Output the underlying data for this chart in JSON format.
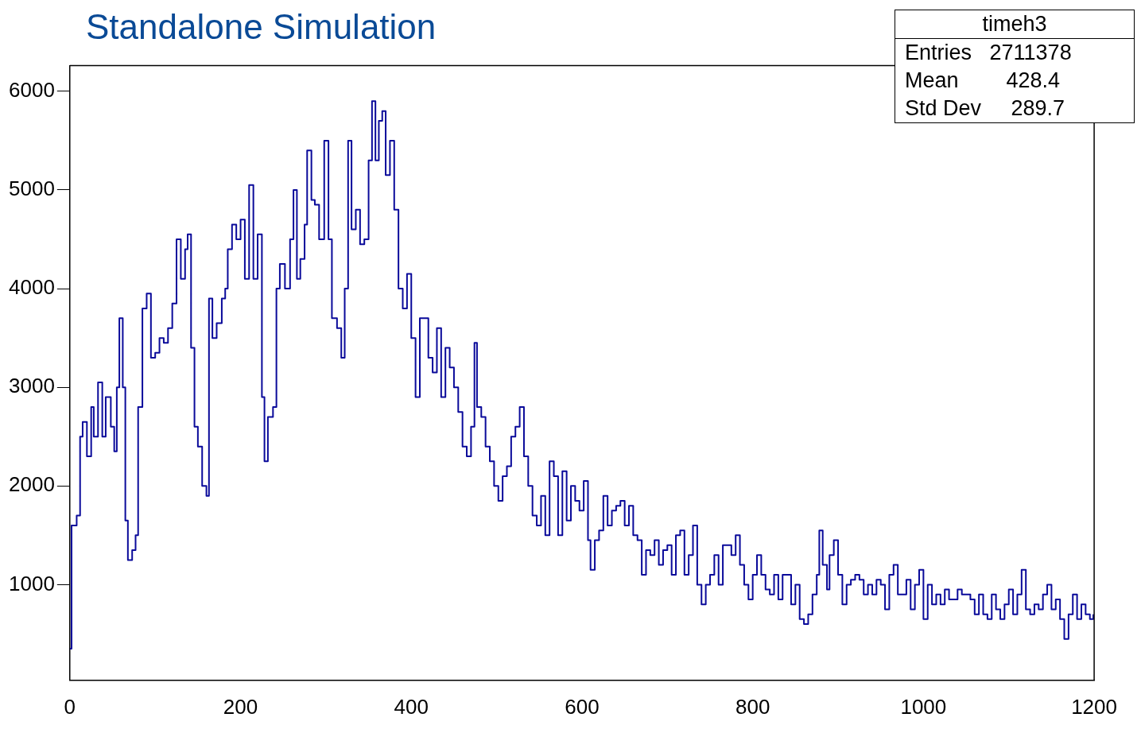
{
  "chart_data": {
    "type": "step",
    "title": "Standalone Simulation",
    "annotations": [
      "timeh3",
      "Entries   2711378",
      "Mean        428.4",
      "Std Dev     289.7"
    ],
    "xlim": [
      0,
      1200
    ],
    "xticks": [
      0,
      200,
      400,
      600,
      800,
      1000,
      1200
    ],
    "ylim": [
      30,
      6260
    ],
    "yticks": [
      1000,
      2000,
      3000,
      4000,
      5000,
      6000
    ],
    "grid": false,
    "legend": false,
    "x": [
      0,
      2,
      8,
      12,
      15,
      20,
      25,
      28,
      33,
      38,
      42,
      48,
      52,
      55,
      58,
      62,
      65,
      68,
      73,
      77,
      80,
      85,
      90,
      95,
      100,
      105,
      110,
      115,
      120,
      125,
      130,
      135,
      138,
      142,
      146,
      150,
      155,
      160,
      163,
      167,
      172,
      178,
      182,
      185,
      190,
      195,
      200,
      205,
      210,
      215,
      220,
      225,
      228,
      232,
      238,
      242,
      246,
      252,
      258,
      262,
      266,
      270,
      275,
      278,
      283,
      287,
      292,
      298,
      303,
      307,
      313,
      318,
      322,
      326,
      330,
      335,
      340,
      345,
      350,
      354,
      358,
      362,
      366,
      370,
      375,
      380,
      385,
      390,
      395,
      400,
      405,
      410,
      415,
      420,
      425,
      430,
      435,
      440,
      445,
      450,
      455,
      460,
      465,
      470,
      474,
      477,
      482,
      487,
      492,
      497,
      502,
      507,
      512,
      517,
      522,
      527,
      532,
      537,
      542,
      547,
      552,
      557,
      562,
      567,
      572,
      577,
      582,
      587,
      592,
      597,
      602,
      607,
      610,
      615,
      620,
      625,
      630,
      635,
      640,
      645,
      650,
      655,
      660,
      665,
      670,
      675,
      680,
      685,
      690,
      695,
      700,
      705,
      710,
      715,
      720,
      725,
      730,
      735,
      740,
      745,
      750,
      755,
      760,
      765,
      770,
      775,
      780,
      785,
      790,
      795,
      800,
      805,
      810,
      815,
      820,
      825,
      830,
      835,
      840,
      845,
      850,
      855,
      860,
      865,
      870,
      875,
      878,
      882,
      887,
      890,
      895,
      900,
      905,
      910,
      915,
      920,
      925,
      930,
      935,
      940,
      945,
      950,
      955,
      960,
      965,
      970,
      975,
      980,
      985,
      990,
      995,
      1000,
      1005,
      1010,
      1015,
      1020,
      1025,
      1030,
      1035,
      1040,
      1045,
      1050,
      1055,
      1060,
      1065,
      1070,
      1075,
      1080,
      1085,
      1090,
      1095,
      1100,
      1105,
      1110,
      1115,
      1120,
      1125,
      1130,
      1135,
      1140,
      1145,
      1150,
      1155,
      1160,
      1165,
      1170,
      1175,
      1180,
      1185,
      1190,
      1195,
      1199
    ],
    "series": [
      {
        "color": "#0a0a9a",
        "values": [
          350,
          1600,
          1700,
          2500,
          2650,
          2300,
          2800,
          2500,
          3050,
          2500,
          2900,
          2600,
          2350,
          3000,
          3700,
          3000,
          1650,
          1250,
          1350,
          1500,
          2800,
          3800,
          3950,
          3300,
          3350,
          3500,
          3450,
          3600,
          3850,
          4500,
          4100,
          4400,
          4550,
          3400,
          2600,
          2400,
          2000,
          1900,
          3900,
          3500,
          3650,
          3900,
          4000,
          4400,
          4650,
          4500,
          4700,
          4100,
          5050,
          4100,
          4550,
          2900,
          2250,
          2700,
          2800,
          4000,
          4250,
          4000,
          4500,
          5000,
          4100,
          4300,
          4650,
          5400,
          4900,
          4850,
          4500,
          5500,
          4500,
          3700,
          3600,
          3300,
          4000,
          5500,
          4600,
          4800,
          4450,
          4500,
          5300,
          5900,
          5300,
          5700,
          5800,
          5150,
          5500,
          4800,
          4000,
          3800,
          4150,
          3500,
          2900,
          3700,
          3700,
          3300,
          3150,
          3600,
          2900,
          3400,
          3200,
          3000,
          2750,
          2400,
          2300,
          2600,
          3450,
          2800,
          2700,
          2400,
          2250,
          2000,
          1850,
          2100,
          2200,
          2500,
          2600,
          2800,
          2300,
          2000,
          1700,
          1600,
          1900,
          1500,
          2250,
          2100,
          1500,
          2150,
          1650,
          2000,
          1850,
          1750,
          2050,
          1450,
          1150,
          1450,
          1550,
          1900,
          1600,
          1750,
          1800,
          1850,
          1600,
          1800,
          1500,
          1450,
          1100,
          1350,
          1300,
          1450,
          1200,
          1350,
          1400,
          1100,
          1500,
          1550,
          1100,
          1300,
          1600,
          1000,
          800,
          1000,
          1100,
          1300,
          1000,
          1400,
          1400,
          1300,
          1500,
          1200,
          1000,
          850,
          1100,
          1300,
          1100,
          950,
          900,
          1100,
          850,
          1100,
          1100,
          800,
          1000,
          650,
          600,
          700,
          900,
          1100,
          1550,
          1200,
          950,
          1300,
          1450,
          1100,
          800,
          1000,
          1050,
          1100,
          1050,
          900,
          1000,
          900,
          1050,
          1000,
          750,
          1100,
          1200,
          900,
          900,
          1050,
          750,
          1000,
          1150,
          650,
          1000,
          800,
          900,
          800,
          950,
          850,
          850,
          950,
          900,
          900,
          850,
          700,
          900,
          700,
          650,
          900,
          750,
          650,
          800,
          950,
          700,
          900,
          1150,
          750,
          700,
          800,
          750,
          900,
          1000,
          750,
          850,
          650,
          450,
          700,
          900,
          650,
          800,
          700,
          650,
          700
        ]
      }
    ]
  }
}
